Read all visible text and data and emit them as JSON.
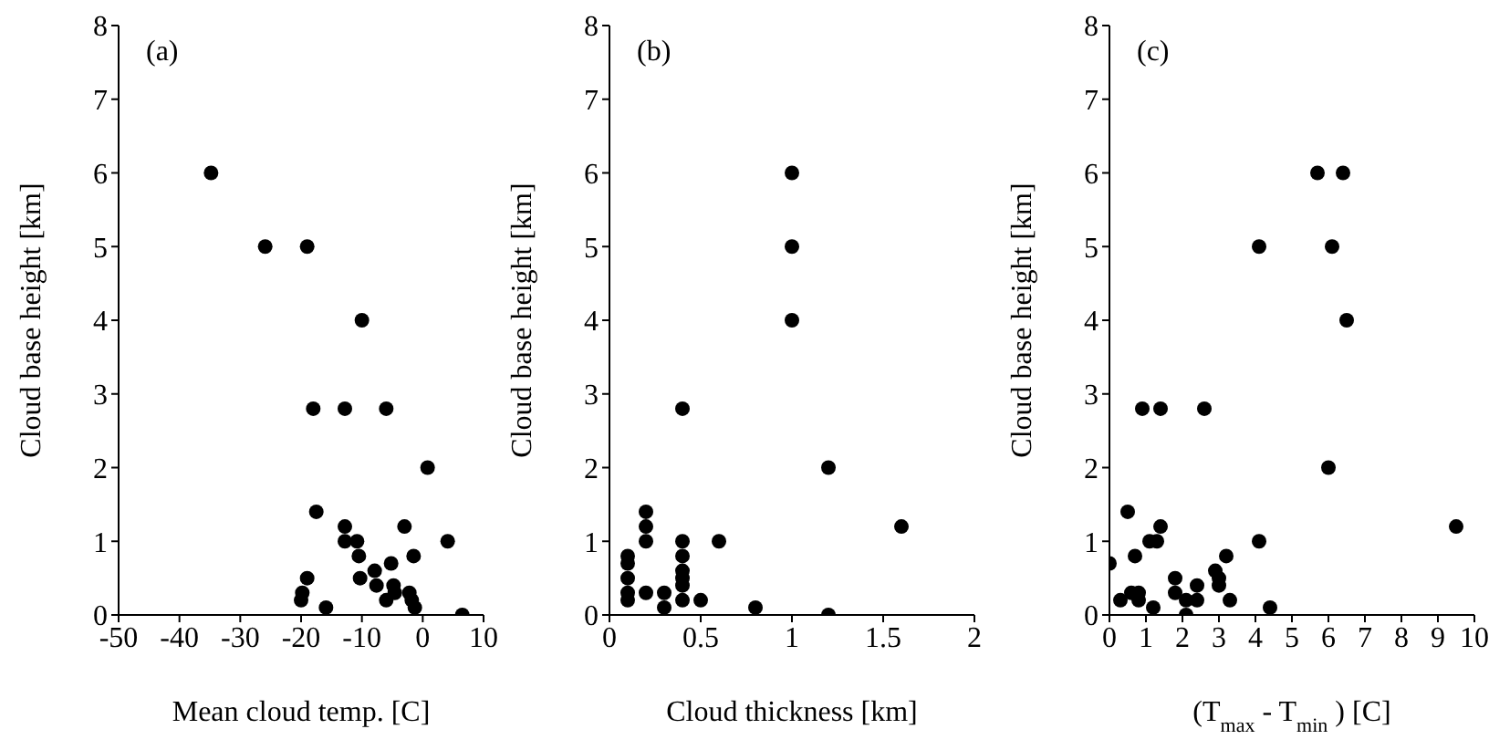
{
  "chart_data": [
    {
      "type": "scatter",
      "xlabel": "Mean cloud temp. [C]",
      "ylabel": "Cloud base height [km]",
      "annotations": [
        "(a)"
      ],
      "color": "#000000",
      "marker": "circle",
      "xlim": [
        -50,
        10
      ],
      "xticks": [
        -50,
        -40,
        -30,
        -20,
        -10,
        0,
        10
      ],
      "ylim": [
        0,
        8
      ],
      "yticks": [
        0,
        1,
        2,
        3,
        4,
        5,
        6,
        7,
        8
      ],
      "x": [
        -34.8,
        -25.9,
        -19,
        -10,
        -18,
        -12.8,
        -6,
        0.8,
        -17.5,
        -12.8,
        -3,
        -12.8,
        -10.8,
        4.1,
        -10.5,
        -1.5,
        -19,
        -5.2,
        -7.9,
        -10.3,
        -7.6,
        -4.8,
        -4.6,
        -2.2,
        -19.8,
        -20,
        -6,
        -1.8,
        -1.3,
        -15.9,
        6.5
      ],
      "values": [
        6,
        5,
        5,
        4,
        2.8,
        2.8,
        2.8,
        2,
        1.4,
        1.2,
        1.2,
        1,
        1,
        1,
        0.8,
        0.8,
        0.5,
        0.7,
        0.6,
        0.5,
        0.4,
        0.4,
        0.3,
        0.3,
        0.3,
        0.2,
        0.2,
        0.2,
        0.1,
        0.1,
        0
      ]
    },
    {
      "type": "scatter",
      "xlabel": "Cloud thickness [km]",
      "ylabel": "Cloud base height [km]",
      "annotations": [
        "(b)"
      ],
      "color": "#000000",
      "marker": "circle",
      "xlim": [
        0,
        2
      ],
      "xticks": [
        0,
        0.5,
        1,
        1.5,
        2
      ],
      "ylim": [
        0,
        8
      ],
      "yticks": [
        0,
        1,
        2,
        3,
        4,
        5,
        6,
        7,
        8
      ],
      "x": [
        1,
        1,
        1,
        0.4,
        1.2,
        1.6,
        0.2,
        0.2,
        0.2,
        0.4,
        0.6,
        0.1,
        0.1,
        0.1,
        0.1,
        0.1,
        0.4,
        0.4,
        0.4,
        0.4,
        0.4,
        0.2,
        0.3,
        0.3,
        0.5,
        0.8,
        1.2
      ],
      "values": [
        6,
        5,
        4,
        2.8,
        2,
        1.2,
        1.4,
        1.2,
        1,
        1,
        1,
        0.8,
        0.7,
        0.5,
        0.3,
        0.2,
        0.8,
        0.6,
        0.5,
        0.4,
        0.2,
        0.3,
        0.3,
        0.1,
        0.2,
        0.1,
        0
      ]
    },
    {
      "type": "scatter",
      "xlabel": "(T$_{max}$ - T$_{min}$) [C]",
      "ylabel": "Cloud base height [km]",
      "annotations": [
        "(c)"
      ],
      "color": "#000000",
      "marker": "circle",
      "xlim": [
        0,
        10
      ],
      "xticks": [
        0,
        1,
        2,
        3,
        4,
        5,
        6,
        7,
        8,
        9,
        10
      ],
      "ylim": [
        0,
        8
      ],
      "yticks": [
        0,
        1,
        2,
        3,
        4,
        5,
        6,
        7,
        8
      ],
      "x": [
        5.7,
        6.4,
        6.1,
        4.1,
        6.5,
        0.9,
        1.4,
        2.6,
        6,
        9.5,
        0.5,
        1.4,
        1.1,
        1.3,
        4.1,
        0,
        0.7,
        3.2,
        0.3,
        0.6,
        0.8,
        0.8,
        1.2,
        1.8,
        1.8,
        2.1,
        2.1,
        2.4,
        2.4,
        2.9,
        3,
        3,
        3.3,
        4.4
      ],
      "values": [
        6,
        6,
        5,
        5,
        4,
        2.8,
        2.8,
        2.8,
        2,
        1.2,
        1.4,
        1.2,
        1,
        1,
        1,
        0.7,
        0.8,
        0.8,
        0.2,
        0.3,
        0.3,
        0.2,
        0.1,
        0.5,
        0.3,
        0.2,
        0,
        0.4,
        0.2,
        0.6,
        0.5,
        0.4,
        0.2,
        0.1
      ]
    }
  ]
}
